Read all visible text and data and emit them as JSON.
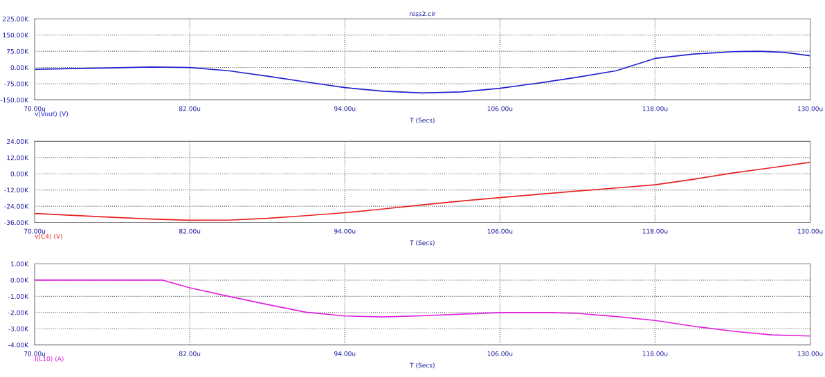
{
  "chart_data": [
    {
      "type": "line",
      "title": "ress2.cir",
      "xlabel": "T (Secs)",
      "grid": true,
      "x": [
        70,
        73,
        76,
        79,
        82,
        85,
        88,
        91,
        94,
        97,
        100,
        103,
        106,
        109,
        112,
        115,
        118,
        121,
        124,
        126,
        128,
        130
      ],
      "series": [
        {
          "name": "v(Vout) (V)",
          "color": "#2020d0",
          "values": [
            -8,
            -5,
            -2,
            2,
            0,
            -15,
            -40,
            -67,
            -93,
            -110,
            -118,
            -113,
            -96,
            -72,
            -45,
            -15,
            42,
            62,
            73,
            75,
            70,
            54
          ]
        }
      ],
      "xlim": [
        70,
        130
      ],
      "xticks": [
        {
          "value": 70,
          "label": "70.00u"
        },
        {
          "value": 82,
          "label": "82.00u"
        },
        {
          "value": 94,
          "label": "94.00u"
        },
        {
          "value": 106,
          "label": "106.00u"
        },
        {
          "value": 118,
          "label": "118.00u"
        },
        {
          "value": 130,
          "label": "130.00u"
        }
      ],
      "ylim": [
        -150,
        225
      ],
      "yticks": [
        {
          "value": -150,
          "label": "-150.00K"
        },
        {
          "value": -75,
          "label": "-75.00K"
        },
        {
          "value": 0,
          "label": "0.00K"
        },
        {
          "value": 75,
          "label": "75.00K"
        },
        {
          "value": 150,
          "label": "150.00K"
        },
        {
          "value": 225,
          "label": "225.00K"
        }
      ]
    },
    {
      "type": "line",
      "xlabel": "T (Secs)",
      "grid": true,
      "x": [
        70,
        73,
        76,
        79,
        82,
        85,
        88,
        91,
        94,
        97,
        100,
        103,
        106,
        109,
        112,
        115,
        118,
        121,
        124,
        127,
        130
      ],
      "series": [
        {
          "name": "v(C4) (V)",
          "color": "#e82020",
          "values": [
            -29.4,
            -30.8,
            -32.2,
            -33.5,
            -34.4,
            -34.3,
            -33,
            -31,
            -28.8,
            -26,
            -23,
            -20.2,
            -17.6,
            -15.2,
            -12.7,
            -10.5,
            -8.1,
            -4,
            0.6,
            4.5,
            8.5
          ]
        }
      ],
      "xlim": [
        70,
        130
      ],
      "xticks": [
        {
          "value": 70,
          "label": "70.00u"
        },
        {
          "value": 82,
          "label": "82.00u"
        },
        {
          "value": 94,
          "label": "94.00u"
        },
        {
          "value": 106,
          "label": "106.00u"
        },
        {
          "value": 118,
          "label": "118.00u"
        },
        {
          "value": 130,
          "label": "130.00u"
        }
      ],
      "ylim": [
        -36,
        24
      ],
      "yticks": [
        {
          "value": -36,
          "label": "-36.00K"
        },
        {
          "value": -24,
          "label": "-24.00K"
        },
        {
          "value": -12,
          "label": "-12.00K"
        },
        {
          "value": 0,
          "label": "0.00K"
        },
        {
          "value": 12,
          "label": "12.00K"
        },
        {
          "value": 24,
          "label": "24.00K"
        }
      ]
    },
    {
      "type": "line",
      "xlabel": "T (Secs)",
      "grid": true,
      "x": [
        70,
        76,
        79.9,
        82,
        85,
        88,
        91,
        94,
        97,
        100,
        103,
        106,
        110,
        112,
        115,
        118,
        121,
        124,
        127,
        130
      ],
      "series": [
        {
          "name": "I(L10) (A)",
          "color": "#e020e0",
          "values": [
            0,
            0,
            0,
            -0.47,
            -1.0,
            -1.5,
            -1.98,
            -2.21,
            -2.27,
            -2.2,
            -2.1,
            -2.0,
            -2.0,
            -2.05,
            -2.25,
            -2.49,
            -2.85,
            -3.15,
            -3.38,
            -3.45
          ]
        }
      ],
      "xlim": [
        70,
        130
      ],
      "xticks": [
        {
          "value": 70,
          "label": "70.00u"
        },
        {
          "value": 82,
          "label": "82.00u"
        },
        {
          "value": 94,
          "label": "94.00u"
        },
        {
          "value": 106,
          "label": "106.00u"
        },
        {
          "value": 118,
          "label": "118.00u"
        },
        {
          "value": 130,
          "label": "130.00u"
        }
      ],
      "ylim": [
        -4,
        1
      ],
      "yticks": [
        {
          "value": -4,
          "label": "-4.00K"
        },
        {
          "value": -3,
          "label": "-3.00K"
        },
        {
          "value": -2,
          "label": "-2.00K"
        },
        {
          "value": -1,
          "label": "-1.00K"
        },
        {
          "value": 0,
          "label": "0.00K"
        },
        {
          "value": 1,
          "label": "1.00K"
        }
      ]
    }
  ]
}
